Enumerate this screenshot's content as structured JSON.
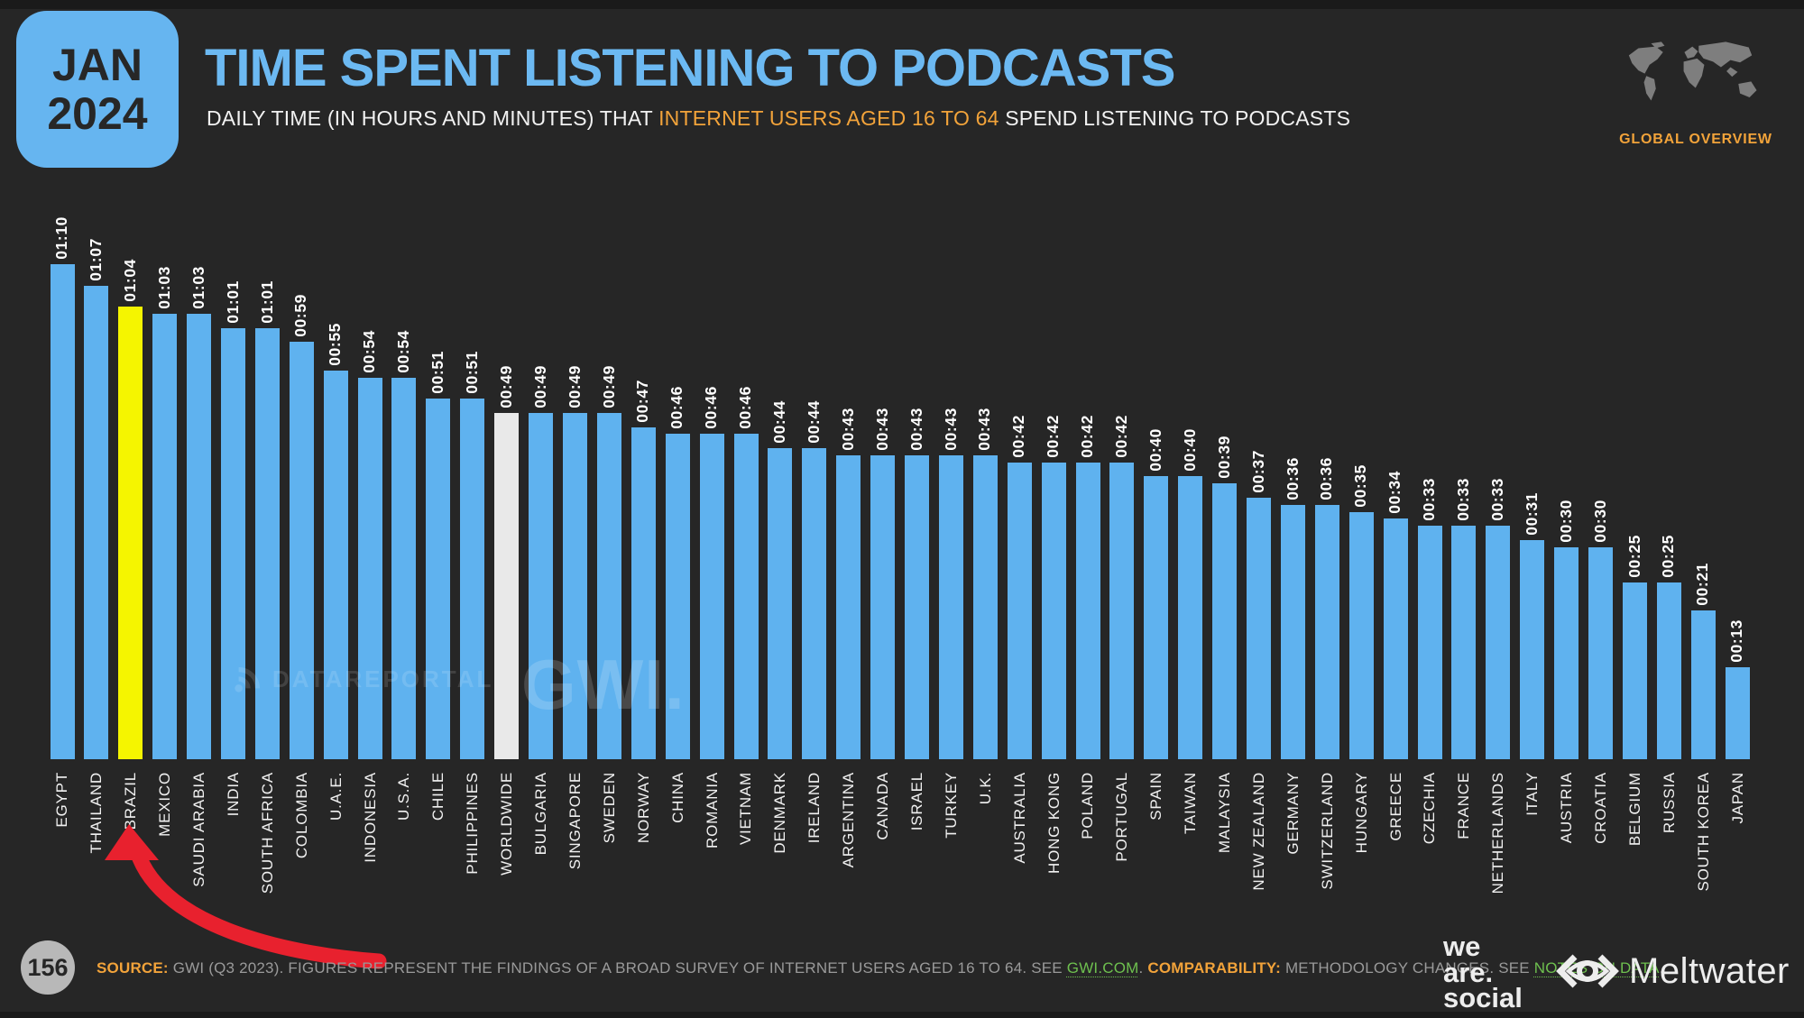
{
  "header": {
    "date_month": "JAN",
    "date_year": "2024",
    "title": "TIME SPENT LISTENING TO PODCASTS",
    "subtitle_prefix": "DAILY TIME (IN HOURS AND MINUTES) THAT ",
    "subtitle_highlight": "INTERNET USERS AGED 16 TO 64",
    "subtitle_suffix": " SPEND LISTENING TO PODCASTS",
    "overview_label": "GLOBAL OVERVIEW"
  },
  "chart_data": {
    "type": "bar",
    "title": "Time spent listening to podcasts (daily, hh:mm)",
    "unit": "hours:minutes per day",
    "ylim_minutes": [
      0,
      75
    ],
    "categories": [
      "EGYPT",
      "THAILAND",
      "BRAZIL",
      "MEXICO",
      "SAUDI ARABIA",
      "INDIA",
      "SOUTH AFRICA",
      "COLOMBIA",
      "U.A.E.",
      "INDONESIA",
      "U.S.A.",
      "CHILE",
      "PHILIPPINES",
      "WORLDWIDE",
      "BULGARIA",
      "SINGAPORE",
      "SWEDEN",
      "NORWAY",
      "CHINA",
      "ROMANIA",
      "VIETNAM",
      "DENMARK",
      "IRELAND",
      "ARGENTINA",
      "CANADA",
      "ISRAEL",
      "TURKEY",
      "U.K.",
      "AUSTRALIA",
      "HONG KONG",
      "POLAND",
      "PORTUGAL",
      "SPAIN",
      "TAIWAN",
      "MALAYSIA",
      "NEW ZEALAND",
      "GERMANY",
      "SWITZERLAND",
      "HUNGARY",
      "GREECE",
      "CZECHIA",
      "FRANCE",
      "NETHERLANDS",
      "ITALY",
      "AUSTRIA",
      "CROATIA",
      "BELGIUM",
      "RUSSIA",
      "SOUTH KOREA",
      "JAPAN"
    ],
    "labels": [
      "01:10",
      "01:07",
      "01:04",
      "01:03",
      "01:03",
      "01:01",
      "01:01",
      "00:59",
      "00:55",
      "00:54",
      "00:54",
      "00:51",
      "00:51",
      "00:49",
      "00:49",
      "00:49",
      "00:49",
      "00:47",
      "00:46",
      "00:46",
      "00:46",
      "00:44",
      "00:44",
      "00:43",
      "00:43",
      "00:43",
      "00:43",
      "00:43",
      "00:42",
      "00:42",
      "00:42",
      "00:42",
      "00:40",
      "00:40",
      "00:39",
      "00:37",
      "00:36",
      "00:36",
      "00:35",
      "00:34",
      "00:33",
      "00:33",
      "00:33",
      "00:31",
      "00:30",
      "00:30",
      "00:25",
      "00:25",
      "00:21",
      "00:13"
    ],
    "values_minutes": [
      70,
      67,
      64,
      63,
      63,
      61,
      61,
      59,
      55,
      54,
      54,
      51,
      51,
      49,
      49,
      49,
      49,
      47,
      46,
      46,
      46,
      44,
      44,
      43,
      43,
      43,
      43,
      43,
      42,
      42,
      42,
      42,
      40,
      40,
      39,
      37,
      36,
      36,
      35,
      34,
      33,
      33,
      33,
      31,
      30,
      30,
      25,
      25,
      21,
      13
    ],
    "highlight_country": "BRAZIL",
    "baseline_series": "WORLDWIDE",
    "colors": {
      "bar": "#5FB2EF",
      "highlight": "#F5F500",
      "worldwide": "#E9E9E9"
    }
  },
  "watermarks": {
    "datareportal": "DATAREPORTAL",
    "gwi": "GWI."
  },
  "footer": {
    "page_number": "156",
    "source_label": "SOURCE:",
    "source_body": " GWI (Q3 2023). FIGURES REPRESENT THE FINDINGS OF A BROAD SURVEY OF INTERNET USERS AGED 16 TO 64. SEE ",
    "source_link": "GWI.COM",
    "source_after": ". ",
    "comparability_label": "COMPARABILITY:",
    "comparability_body": " METHODOLOGY CHANGES. SEE ",
    "notes_link": "NOTES ON DATA",
    "notes_after": ".",
    "we_are_social": [
      "we",
      "are.",
      "social"
    ],
    "meltwater": "Meltwater"
  }
}
